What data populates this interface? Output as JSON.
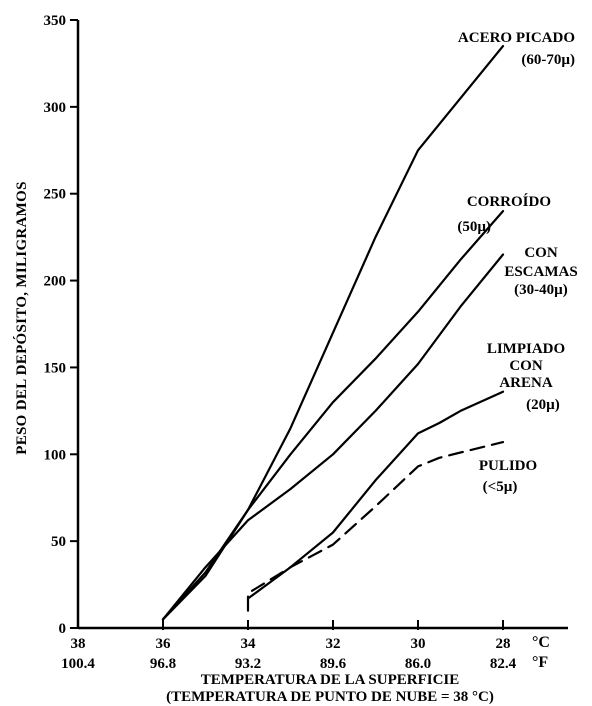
{
  "chart_data": {
    "type": "line",
    "ylabel": "PESO DEL DEPÓSITO, MILIGRAMOS",
    "xlabel": "TEMPERATURA DE LA SUPERFICIE",
    "xlabel_sub": "(TEMPERATURA DE PUNTO DE NUBE = 38 °C)",
    "x_unit_c": "°C",
    "x_unit_f": "°F",
    "xlim": [
      38,
      27.5
    ],
    "ylim": [
      0,
      350
    ],
    "x_ticks_c": [
      "38",
      "36",
      "34",
      "32",
      "30",
      "28"
    ],
    "x_ticks_c_values": [
      38,
      36,
      34,
      32,
      30,
      28
    ],
    "x_ticks_f": [
      "100.4",
      "96.8",
      "93.2",
      "89.6",
      "86.0",
      "82.4"
    ],
    "y_ticks": [
      "0",
      "50",
      "100",
      "150",
      "200",
      "250",
      "300",
      "350"
    ],
    "y_tick_values": [
      0,
      50,
      100,
      150,
      200,
      250,
      300,
      350
    ],
    "grid": false,
    "series": [
      {
        "name": "ACERO PICADO",
        "label_lines": [
          "ACERO PICADO",
          "(60-70µ)"
        ],
        "style": "solid",
        "x": [
          36,
          35,
          34,
          33,
          32,
          31,
          30,
          29.5,
          29,
          28
        ],
        "y": [
          5,
          30,
          68,
          115,
          170,
          225,
          275,
          290,
          305,
          335
        ]
      },
      {
        "name": "CORROÍDO",
        "label_lines": [
          "CORROÍDO",
          "(50µ)"
        ],
        "style": "solid",
        "x": [
          36,
          35,
          34,
          33,
          32,
          31,
          30,
          29,
          28
        ],
        "y": [
          5,
          32,
          68,
          100,
          130,
          155,
          182,
          212,
          240
        ]
      },
      {
        "name": "CON ESCAMAS",
        "label_lines": [
          "CON",
          "ESCAMAS",
          "(30-40µ)"
        ],
        "style": "solid",
        "x": [
          36,
          35,
          34,
          33,
          32,
          31,
          30,
          29,
          28
        ],
        "y": [
          5,
          35,
          62,
          80,
          100,
          125,
          152,
          185,
          215
        ]
      },
      {
        "name": "LIMPIADO CON ARENA",
        "label_lines": [
          "LIMPIADO",
          "CON",
          "ARENA",
          "(20µ)"
        ],
        "style": "solid",
        "x": [
          34,
          33,
          32,
          31,
          30,
          29.5,
          29,
          28
        ],
        "y": [
          17,
          35,
          55,
          85,
          112,
          118,
          125,
          136
        ]
      },
      {
        "name": "PULIDO",
        "label_lines": [
          "PULIDO",
          "(<5µ)"
        ],
        "style": "dashed",
        "x": [
          34,
          34,
          33,
          32,
          31,
          30,
          29.5,
          29,
          28
        ],
        "y": [
          10,
          20,
          35,
          48,
          70,
          93,
          98,
          101,
          107
        ]
      }
    ]
  }
}
